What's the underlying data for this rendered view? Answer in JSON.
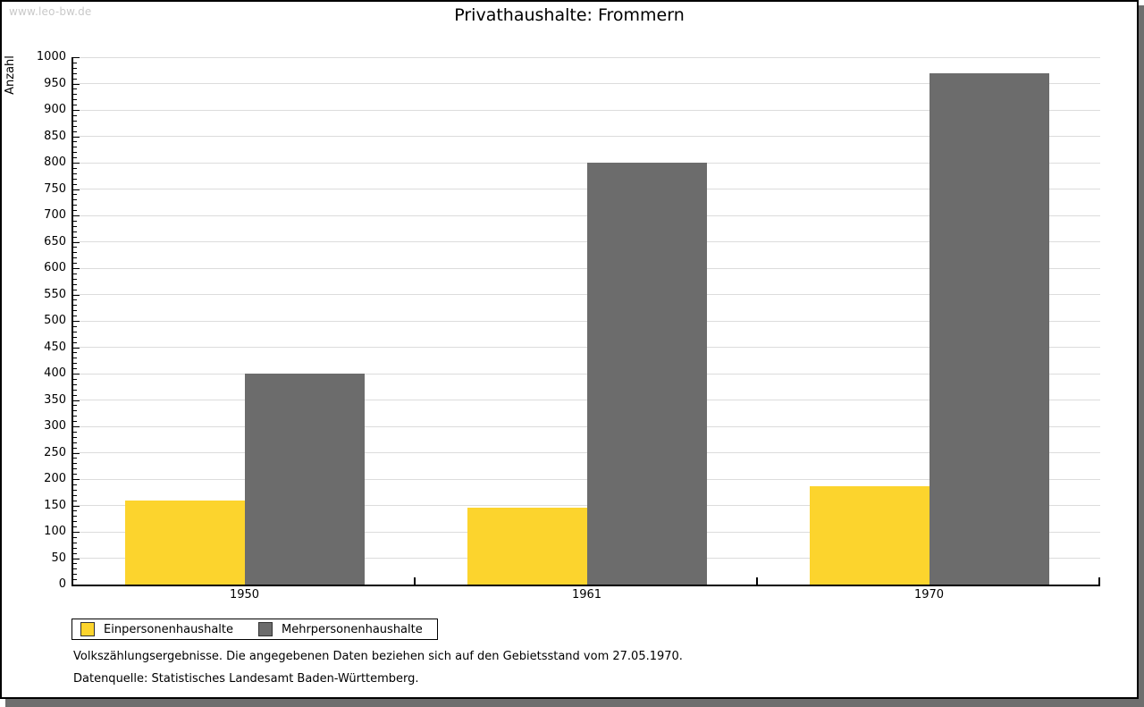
{
  "watermark": "www.leo-bw.de",
  "footnotes": [
    "Volkszählungsergebnisse. Die angegebenen Daten beziehen sich auf den Gebietsstand vom 27.05.1970.",
    "Datenquelle: Statistisches Landesamt Baden-Württemberg."
  ],
  "chart_data": {
    "type": "bar",
    "title": "Privathaushalte: Frommern",
    "categories": [
      "1950",
      "1961",
      "1970"
    ],
    "series": [
      {
        "name": "Einpersonenhaushalte",
        "color": "#FCD42D",
        "values": [
          160,
          146,
          187
        ]
      },
      {
        "name": "Mehrpersonenhaushalte",
        "color": "#6C6C6C",
        "values": [
          400,
          800,
          970
        ]
      }
    ],
    "xlabel": "",
    "ylabel": "Anzahl",
    "ylim": [
      0,
      1000
    ],
    "ytick_step": 50,
    "ytick_minor_step": 10,
    "grid": true,
    "gridline_color": "#DCDCDC",
    "axis_color": "#000000",
    "legend_position": "bottom-left"
  },
  "colors": {
    "shadow": "#6E6E6E",
    "watermark_text": "#C9C9C9"
  }
}
